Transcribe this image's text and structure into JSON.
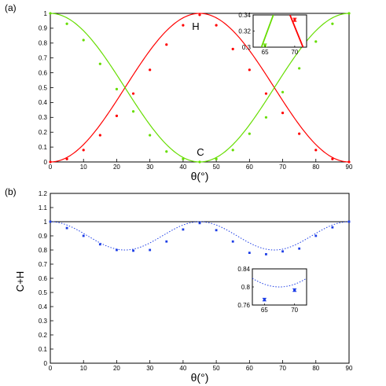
{
  "colors": {
    "H": "#ff0000",
    "C": "#66dd00",
    "sum": "#1c3de6",
    "axis": "#000000"
  },
  "chart_data": [
    {
      "panel_label": "(a)",
      "type": "line",
      "xlabel": "θ(°)",
      "ylabel": "",
      "xlim": [
        0,
        90
      ],
      "ylim": [
        0,
        1
      ],
      "xticks": [
        "0",
        "10",
        "20",
        "30",
        "40",
        "50",
        "60",
        "70",
        "80",
        "90"
      ],
      "yticks": [
        "0",
        "0.1",
        "0.2",
        "0.3",
        "0.4",
        "0.5",
        "0.6",
        "0.7",
        "0.8",
        "0.9",
        "1"
      ],
      "annotations": [
        "H",
        "C"
      ],
      "series": [
        {
          "key": "H",
          "name": "H",
          "points": [
            [
              0,
              0
            ],
            [
              5,
              0.02
            ],
            [
              10,
              0.08
            ],
            [
              15,
              0.18
            ],
            [
              20,
              0.31
            ],
            [
              25,
              0.46
            ],
            [
              30,
              0.62
            ],
            [
              35,
              0.79
            ],
            [
              40,
              0.92
            ],
            [
              45,
              0.99
            ],
            [
              50,
              0.92
            ],
            [
              55,
              0.76
            ],
            [
              60,
              0.62
            ],
            [
              65,
              0.46
            ],
            [
              70,
              0.33
            ],
            [
              75,
              0.19
            ],
            [
              80,
              0.08
            ],
            [
              85,
              0.02
            ],
            [
              90,
              0
            ]
          ]
        },
        {
          "key": "C",
          "name": "C",
          "points": [
            [
              0,
              1
            ],
            [
              5,
              0.93
            ],
            [
              10,
              0.82
            ],
            [
              15,
              0.66
            ],
            [
              20,
              0.49
            ],
            [
              25,
              0.34
            ],
            [
              30,
              0.18
            ],
            [
              35,
              0.07
            ],
            [
              40,
              0.02
            ],
            [
              45,
              0
            ],
            [
              50,
              0.02
            ],
            [
              55,
              0.08
            ],
            [
              60,
              0.19
            ],
            [
              65,
              0.3
            ],
            [
              70,
              0.47
            ],
            [
              75,
              0.63
            ],
            [
              80,
              0.81
            ],
            [
              85,
              0.93
            ],
            [
              90,
              1
            ]
          ]
        }
      ],
      "inset": {
        "xticks": [
          "65",
          "70"
        ],
        "yticks": [
          "0.3",
          "0.32",
          "0.34"
        ],
        "xlim": [
          63,
          72
        ],
        "ylim": [
          0.3,
          0.34
        ],
        "points": [
          {
            "key": "C",
            "x": 65,
            "y": 0.302,
            "err": 0.002
          },
          {
            "key": "H",
            "x": 70,
            "y": 0.334,
            "err": 0.002
          }
        ]
      }
    },
    {
      "panel_label": "(b)",
      "type": "scatter",
      "xlabel": "θ(°)",
      "ylabel": "C+H",
      "xlim": [
        0,
        90
      ],
      "ylim": [
        0,
        1.2
      ],
      "xticks": [
        "0",
        "10",
        "20",
        "30",
        "40",
        "50",
        "60",
        "70",
        "80",
        "90"
      ],
      "yticks": [
        "0",
        "0.1",
        "0.2",
        "0.3",
        "0.4",
        "0.5",
        "0.6",
        "0.7",
        "0.8",
        "0.9",
        "1",
        "1.1",
        "1.2"
      ],
      "reference_line": 1,
      "series": [
        {
          "key": "sum",
          "points": [
            [
              0,
              1
            ],
            [
              5,
              0.955
            ],
            [
              10,
              0.9
            ],
            [
              15,
              0.84
            ],
            [
              20,
              0.8
            ],
            [
              25,
              0.795
            ],
            [
              30,
              0.8
            ],
            [
              35,
              0.86
            ],
            [
              40,
              0.945
            ],
            [
              45,
              0.99
            ],
            [
              50,
              0.94
            ],
            [
              55,
              0.86
            ],
            [
              60,
              0.78
            ],
            [
              65,
              0.77
            ],
            [
              70,
              0.79
            ],
            [
              75,
              0.81
            ],
            [
              80,
              0.9
            ],
            [
              85,
              0.96
            ],
            [
              90,
              1
            ]
          ]
        }
      ],
      "inset": {
        "xticks": [
          "65",
          "70"
        ],
        "yticks": [
          "0.76",
          "0.8",
          "0.84"
        ],
        "xlim": [
          63,
          72
        ],
        "ylim": [
          0.76,
          0.84
        ],
        "points": [
          {
            "key": "sum",
            "x": 65,
            "y": 0.772,
            "err": 0.003
          },
          {
            "key": "sum",
            "x": 70,
            "y": 0.793,
            "err": 0.003
          }
        ]
      }
    }
  ]
}
